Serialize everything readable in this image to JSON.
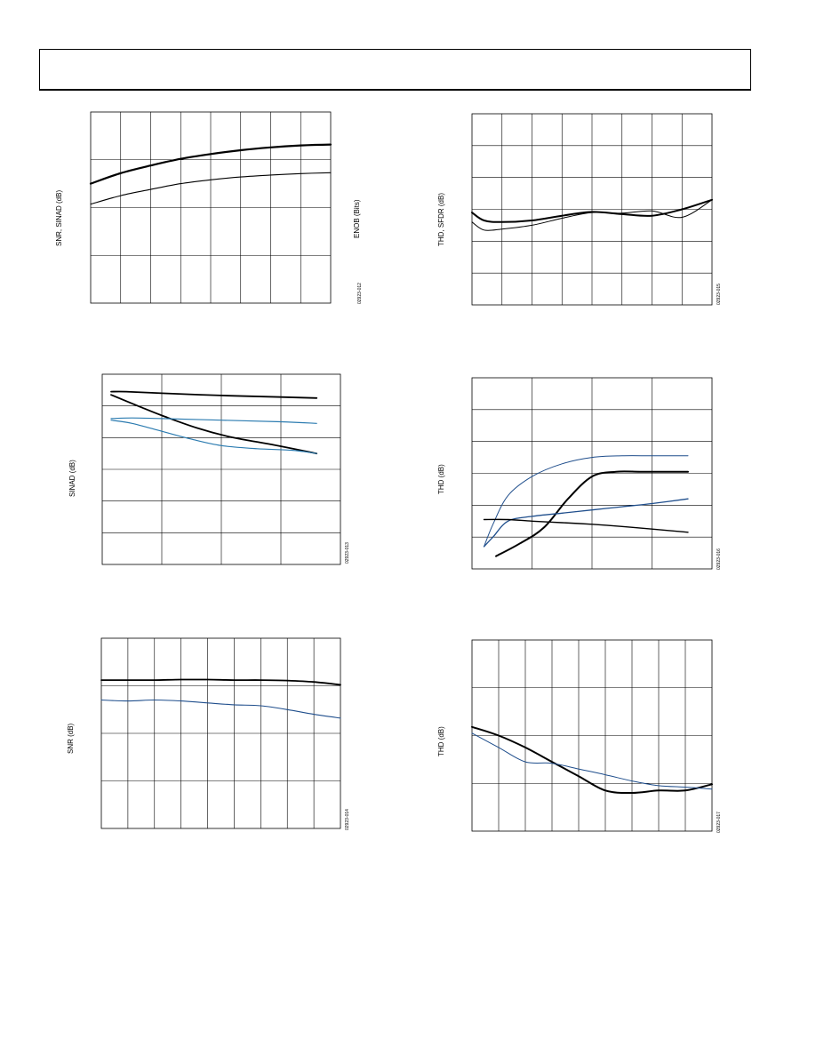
{
  "page": {
    "header_text": ""
  },
  "colors": {
    "dark": "#000000",
    "blue": "#1f4e8c",
    "teal": "#2b7bb0"
  },
  "chart_data": [
    {
      "id": "c1",
      "type": "line",
      "ylabel": "SNR, SINAD (dB)",
      "ylabel2": "ENOB (Bits)",
      "code": "02923-012",
      "xlim": [
        0,
        8
      ],
      "ylim": [
        0,
        4
      ],
      "xgrid": 8,
      "ygrid": 4,
      "series": [
        {
          "color": "dark",
          "width": 2.2,
          "x": [
            0,
            1,
            2,
            3,
            4,
            5,
            6,
            7,
            8
          ],
          "y": [
            2.5,
            2.72,
            2.88,
            3.02,
            3.12,
            3.2,
            3.26,
            3.3,
            3.32
          ]
        },
        {
          "color": "dark",
          "width": 1.1,
          "x": [
            0,
            1,
            2,
            3,
            4,
            5,
            6,
            7,
            8
          ],
          "y": [
            2.07,
            2.25,
            2.38,
            2.5,
            2.58,
            2.64,
            2.68,
            2.71,
            2.73
          ]
        }
      ]
    },
    {
      "id": "c2",
      "type": "line",
      "ylabel": "THD, SFDR (dB)",
      "code": "02923-015",
      "xlim": [
        0,
        8
      ],
      "ylim": [
        0,
        6
      ],
      "xgrid": 8,
      "ygrid": 6,
      "series": [
        {
          "color": "dark",
          "width": 2.0,
          "x": [
            0,
            0.4,
            1,
            2,
            3,
            4,
            5,
            6,
            7,
            8
          ],
          "y": [
            2.9,
            2.65,
            2.6,
            2.65,
            2.8,
            2.92,
            2.85,
            2.8,
            3.0,
            3.3
          ]
        },
        {
          "color": "dark",
          "width": 1.0,
          "x": [
            0,
            0.4,
            1,
            2,
            3,
            4,
            5,
            6,
            7,
            8
          ],
          "y": [
            2.6,
            2.35,
            2.38,
            2.5,
            2.72,
            2.9,
            2.88,
            2.95,
            2.75,
            3.3
          ]
        }
      ]
    },
    {
      "id": "c3",
      "type": "line",
      "ylabel": "SINAD (dB)",
      "code": "02923-013",
      "xlim": [
        0,
        4
      ],
      "ylim": [
        0,
        6
      ],
      "xgrid": 4,
      "ygrid": 6,
      "series": [
        {
          "color": "dark",
          "width": 1.8,
          "x": [
            0.15,
            0.4,
            1,
            2,
            3,
            3.6
          ],
          "y": [
            5.45,
            5.45,
            5.4,
            5.33,
            5.28,
            5.25
          ]
        },
        {
          "color": "dark",
          "width": 1.8,
          "x": [
            0.15,
            0.6,
            1,
            1.6,
            2.2,
            2.8,
            3.6
          ],
          "y": [
            5.35,
            5.0,
            4.7,
            4.3,
            4.0,
            3.8,
            3.5
          ]
        },
        {
          "color": "teal",
          "width": 1.2,
          "x": [
            0.15,
            0.5,
            1,
            2,
            3,
            3.6
          ],
          "y": [
            4.6,
            4.62,
            4.6,
            4.55,
            4.5,
            4.45
          ]
        },
        {
          "color": "teal",
          "width": 1.2,
          "x": [
            0.15,
            0.5,
            1,
            1.5,
            2,
            2.6,
            3.2,
            3.6
          ],
          "y": [
            4.55,
            4.45,
            4.2,
            3.95,
            3.75,
            3.65,
            3.6,
            3.5
          ]
        }
      ]
    },
    {
      "id": "c4",
      "type": "line",
      "ylabel": "THD (dB)",
      "code": "02923-016",
      "xlim": [
        0,
        4
      ],
      "ylim": [
        0,
        6
      ],
      "xgrid": 4,
      "ygrid": 6,
      "series": [
        {
          "color": "blue",
          "width": 1.0,
          "x": [
            0.2,
            0.35,
            0.6,
            1,
            1.5,
            2,
            2.5,
            3,
            3.6
          ],
          "y": [
            0.7,
            1.4,
            2.3,
            2.9,
            3.3,
            3.5,
            3.55,
            3.55,
            3.55
          ]
        },
        {
          "color": "dark",
          "width": 2.0,
          "x": [
            0.4,
            0.8,
            1.2,
            1.6,
            2,
            2.4,
            2.8,
            3.2,
            3.6
          ],
          "y": [
            0.4,
            0.8,
            1.3,
            2.2,
            2.9,
            3.05,
            3.05,
            3.05,
            3.05
          ]
        },
        {
          "color": "blue",
          "width": 1.3,
          "x": [
            0.2,
            0.35,
            0.6,
            1,
            1.5,
            2,
            2.5,
            3,
            3.6
          ],
          "y": [
            0.7,
            1.0,
            1.5,
            1.65,
            1.75,
            1.85,
            1.95,
            2.05,
            2.2
          ]
        },
        {
          "color": "dark",
          "width": 1.4,
          "x": [
            0.2,
            0.6,
            1,
            1.5,
            2,
            2.5,
            3,
            3.6
          ],
          "y": [
            1.55,
            1.55,
            1.5,
            1.45,
            1.4,
            1.33,
            1.25,
            1.15
          ]
        }
      ]
    },
    {
      "id": "c5",
      "type": "line",
      "ylabel": "SNR (dB)",
      "code": "02923-014",
      "xlim": [
        0,
        9
      ],
      "ylim": [
        0,
        4
      ],
      "xgrid": 9,
      "ygrid": 4,
      "series": [
        {
          "color": "dark",
          "width": 1.8,
          "x": [
            0,
            1,
            2,
            3,
            4,
            5,
            6,
            7,
            8,
            9
          ],
          "y": [
            3.12,
            3.12,
            3.12,
            3.13,
            3.13,
            3.12,
            3.12,
            3.11,
            3.08,
            3.02
          ]
        },
        {
          "color": "blue",
          "width": 1.1,
          "x": [
            0,
            1,
            2,
            3,
            4,
            5,
            6,
            7,
            8,
            9
          ],
          "y": [
            2.7,
            2.68,
            2.7,
            2.68,
            2.64,
            2.6,
            2.58,
            2.5,
            2.4,
            2.32
          ]
        }
      ]
    },
    {
      "id": "c6",
      "type": "line",
      "ylabel": "THD (dB)",
      "code": "02923-017",
      "xlim": [
        0,
        9
      ],
      "ylim": [
        0,
        4
      ],
      "xgrid": 9,
      "ygrid": 4,
      "series": [
        {
          "color": "dark",
          "width": 2.0,
          "x": [
            0,
            1,
            2,
            3,
            4,
            5,
            6,
            7,
            8,
            9
          ],
          "y": [
            2.18,
            2.0,
            1.75,
            1.45,
            1.15,
            0.85,
            0.8,
            0.85,
            0.85,
            0.98
          ]
        },
        {
          "color": "blue",
          "width": 1.0,
          "x": [
            0,
            1,
            2,
            3,
            4,
            5,
            6,
            7,
            8,
            9
          ],
          "y": [
            2.05,
            1.75,
            1.45,
            1.42,
            1.3,
            1.18,
            1.05,
            0.95,
            0.92,
            0.88
          ]
        }
      ]
    }
  ]
}
